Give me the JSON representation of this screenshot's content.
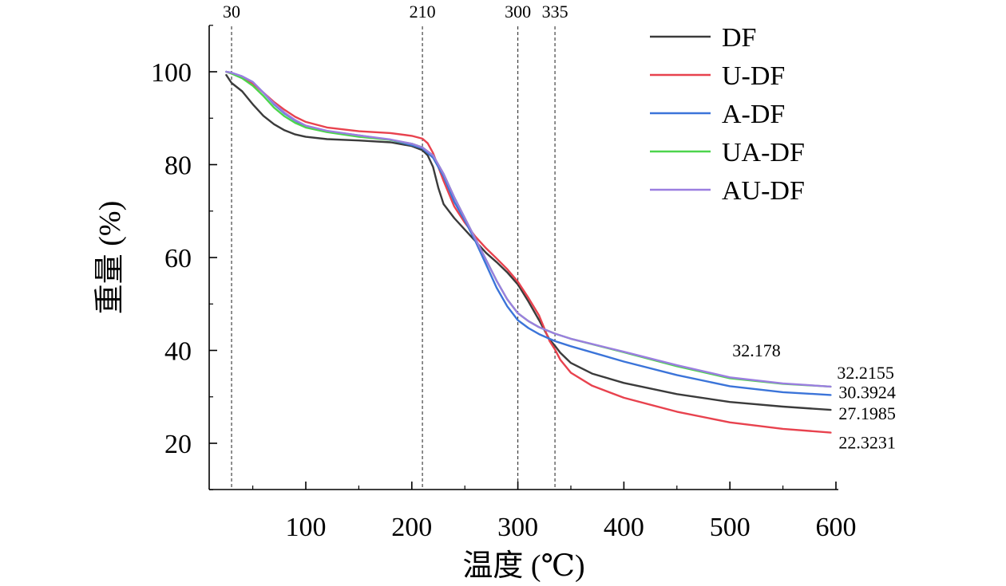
{
  "chart_data": {
    "type": "line",
    "xlabel": "温度 (℃)",
    "ylabel": "重量 (%)",
    "xlim": [
      20,
      595
    ],
    "ylim": [
      10,
      110
    ],
    "x_ticks": [
      100,
      200,
      300,
      400,
      500,
      600
    ],
    "y_ticks": [
      20,
      40,
      60,
      80,
      100
    ],
    "grid": false,
    "legend_position": "top-right",
    "reference_lines": [
      {
        "x": 30,
        "label": "30"
      },
      {
        "x": 210,
        "label": "210"
      },
      {
        "x": 300,
        "label": "300"
      },
      {
        "x": 335,
        "label": "335"
      }
    ],
    "end_labels": [
      {
        "series": "AU-DF",
        "text": "32.178",
        "x": 555,
        "y": 32.178
      },
      {
        "series": "UA-DF",
        "text": "32.2155",
        "x": 595,
        "y": 32.2155
      },
      {
        "series": "A-DF",
        "text": "30.3924",
        "x": 595,
        "y": 30.3924
      },
      {
        "series": "DF",
        "text": "27.1985",
        "x": 595,
        "y": 27.1985
      },
      {
        "series": "U-DF",
        "text": "22.3231",
        "x": 595,
        "y": 22.3231
      }
    ],
    "series": [
      {
        "name": "DF",
        "color": "#3b3b3b",
        "points": [
          [
            25,
            99.3
          ],
          [
            30,
            97.6
          ],
          [
            40,
            95.8
          ],
          [
            50,
            93.0
          ],
          [
            60,
            90.5
          ],
          [
            70,
            88.7
          ],
          [
            80,
            87.4
          ],
          [
            90,
            86.5
          ],
          [
            100,
            86.0
          ],
          [
            120,
            85.5
          ],
          [
            150,
            85.2
          ],
          [
            180,
            84.8
          ],
          [
            200,
            84.0
          ],
          [
            210,
            83.1
          ],
          [
            215,
            82.0
          ],
          [
            220,
            79.5
          ],
          [
            225,
            75.0
          ],
          [
            230,
            71.5
          ],
          [
            240,
            68.5
          ],
          [
            250,
            66.0
          ],
          [
            260,
            63.5
          ],
          [
            270,
            61.0
          ],
          [
            280,
            59.0
          ],
          [
            290,
            56.8
          ],
          [
            300,
            54.2
          ],
          [
            310,
            50.5
          ],
          [
            320,
            46.5
          ],
          [
            330,
            42.3
          ],
          [
            335,
            41.0
          ],
          [
            340,
            39.5
          ],
          [
            350,
            37.3
          ],
          [
            370,
            35.0
          ],
          [
            400,
            33.0
          ],
          [
            450,
            30.6
          ],
          [
            500,
            28.9
          ],
          [
            550,
            27.9
          ],
          [
            595,
            27.2
          ]
        ]
      },
      {
        "name": "U-DF",
        "color": "#e8424e",
        "points": [
          [
            25,
            100.0
          ],
          [
            30,
            99.6
          ],
          [
            40,
            98.8
          ],
          [
            50,
            97.5
          ],
          [
            60,
            95.5
          ],
          [
            70,
            93.5
          ],
          [
            80,
            91.8
          ],
          [
            90,
            90.3
          ],
          [
            100,
            89.2
          ],
          [
            120,
            88.0
          ],
          [
            150,
            87.2
          ],
          [
            180,
            86.8
          ],
          [
            200,
            86.2
          ],
          [
            210,
            85.6
          ],
          [
            215,
            84.6
          ],
          [
            220,
            82.5
          ],
          [
            230,
            76.5
          ],
          [
            240,
            71.0
          ],
          [
            250,
            67.5
          ],
          [
            260,
            64.5
          ],
          [
            270,
            62.0
          ],
          [
            280,
            59.8
          ],
          [
            290,
            57.5
          ],
          [
            300,
            54.8
          ],
          [
            310,
            51.3
          ],
          [
            320,
            47.5
          ],
          [
            330,
            42.0
          ],
          [
            335,
            40.2
          ],
          [
            340,
            38.0
          ],
          [
            350,
            35.2
          ],
          [
            370,
            32.4
          ],
          [
            400,
            29.8
          ],
          [
            450,
            26.8
          ],
          [
            500,
            24.5
          ],
          [
            550,
            23.1
          ],
          [
            595,
            22.3
          ]
        ]
      },
      {
        "name": "A-DF",
        "color": "#3b74d9",
        "points": [
          [
            25,
            100.0
          ],
          [
            30,
            99.8
          ],
          [
            40,
            99.0
          ],
          [
            50,
            97.8
          ],
          [
            60,
            95.5
          ],
          [
            70,
            93.0
          ],
          [
            80,
            91.0
          ],
          [
            90,
            89.5
          ],
          [
            100,
            88.2
          ],
          [
            120,
            87.2
          ],
          [
            150,
            86.3
          ],
          [
            180,
            85.3
          ],
          [
            200,
            84.2
          ],
          [
            210,
            83.5
          ],
          [
            220,
            81.5
          ],
          [
            230,
            77.5
          ],
          [
            240,
            72.0
          ],
          [
            250,
            68.0
          ],
          [
            260,
            63.5
          ],
          [
            270,
            58.5
          ],
          [
            280,
            53.5
          ],
          [
            290,
            49.5
          ],
          [
            300,
            46.5
          ],
          [
            310,
            44.8
          ],
          [
            320,
            43.5
          ],
          [
            335,
            42.0
          ],
          [
            350,
            40.9
          ],
          [
            400,
            37.6
          ],
          [
            450,
            34.7
          ],
          [
            500,
            32.3
          ],
          [
            550,
            31.0
          ],
          [
            595,
            30.4
          ]
        ]
      },
      {
        "name": "UA-DF",
        "color": "#4cd44c",
        "points": [
          [
            25,
            100.0
          ],
          [
            30,
            99.6
          ],
          [
            40,
            98.6
          ],
          [
            50,
            97.0
          ],
          [
            60,
            94.8
          ],
          [
            70,
            92.3
          ],
          [
            80,
            90.4
          ],
          [
            90,
            89.0
          ],
          [
            100,
            88.0
          ],
          [
            120,
            87.0
          ],
          [
            150,
            86.0
          ],
          [
            180,
            85.3
          ],
          [
            200,
            84.5
          ],
          [
            210,
            83.7
          ],
          [
            220,
            82.0
          ],
          [
            230,
            78.0
          ],
          [
            240,
            73.0
          ],
          [
            250,
            68.5
          ],
          [
            260,
            64.0
          ],
          [
            270,
            59.5
          ],
          [
            280,
            55.0
          ],
          [
            290,
            51.0
          ],
          [
            300,
            48.0
          ],
          [
            310,
            46.3
          ],
          [
            320,
            45.0
          ],
          [
            335,
            43.6
          ],
          [
            350,
            42.5
          ],
          [
            400,
            39.6
          ],
          [
            450,
            36.6
          ],
          [
            500,
            34.0
          ],
          [
            550,
            32.8
          ],
          [
            595,
            32.2
          ]
        ]
      },
      {
        "name": "AU-DF",
        "color": "#9b7ee0",
        "points": [
          [
            25,
            100.0
          ],
          [
            30,
            99.8
          ],
          [
            40,
            99.0
          ],
          [
            50,
            97.8
          ],
          [
            60,
            95.5
          ],
          [
            70,
            93.2
          ],
          [
            80,
            91.2
          ],
          [
            90,
            89.6
          ],
          [
            100,
            88.4
          ],
          [
            120,
            87.3
          ],
          [
            150,
            86.3
          ],
          [
            180,
            85.4
          ],
          [
            200,
            84.5
          ],
          [
            210,
            83.7
          ],
          [
            220,
            82.0
          ],
          [
            230,
            78.0
          ],
          [
            240,
            73.0
          ],
          [
            250,
            68.5
          ],
          [
            260,
            64.0
          ],
          [
            270,
            59.5
          ],
          [
            280,
            55.0
          ],
          [
            290,
            51.0
          ],
          [
            300,
            48.0
          ],
          [
            310,
            46.3
          ],
          [
            320,
            45.0
          ],
          [
            335,
            43.6
          ],
          [
            350,
            42.5
          ],
          [
            400,
            39.7
          ],
          [
            450,
            36.8
          ],
          [
            500,
            34.2
          ],
          [
            550,
            32.9
          ],
          [
            595,
            32.2
          ]
        ]
      }
    ]
  }
}
